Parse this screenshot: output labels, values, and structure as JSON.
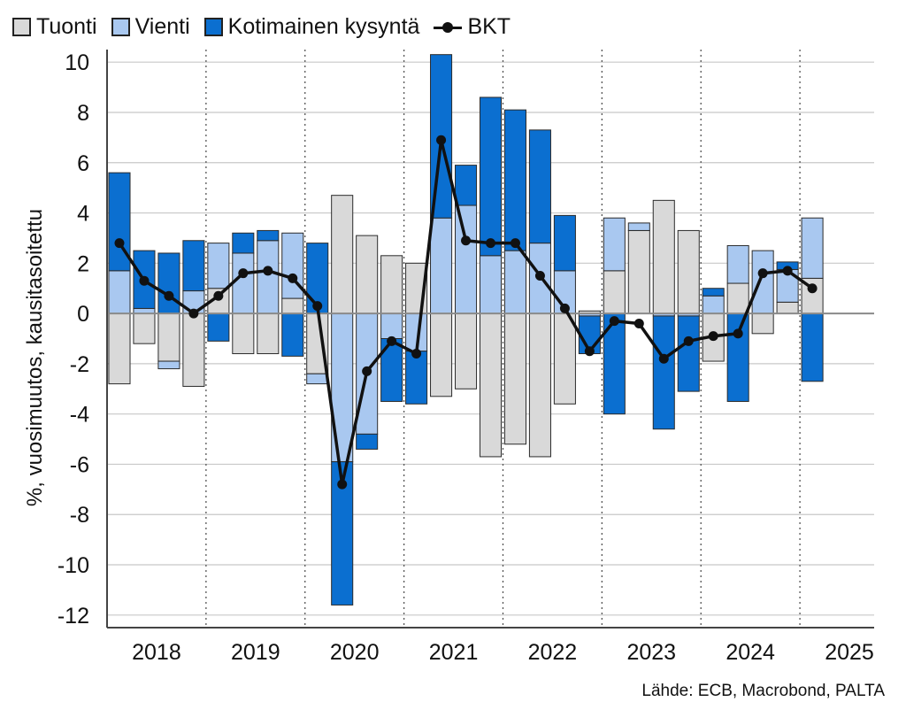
{
  "chart_data": {
    "type": "bar",
    "stacked": true,
    "title": "",
    "xlabel": "",
    "ylabel": "%, vuosimuutos, kausitasoitettu",
    "ylim": [
      -12.5,
      10.5
    ],
    "yticks": [
      10,
      8,
      6,
      4,
      2,
      0,
      -2,
      -4,
      -6,
      -8,
      -10,
      -12
    ],
    "year_labels": [
      "2018",
      "2019",
      "2020",
      "2021",
      "2022",
      "2023",
      "2024",
      "2025"
    ],
    "grid": true,
    "legend_position": "top",
    "categories": [
      "2018Q1",
      "2018Q2",
      "2018Q3",
      "2018Q4",
      "2019Q1",
      "2019Q2",
      "2019Q3",
      "2019Q4",
      "2020Q1",
      "2020Q2",
      "2020Q3",
      "2020Q4",
      "2021Q1",
      "2021Q2",
      "2021Q3",
      "2021Q4",
      "2022Q1",
      "2022Q2",
      "2022Q3",
      "2022Q4",
      "2023Q1",
      "2023Q2",
      "2023Q3",
      "2023Q4",
      "2024Q1",
      "2024Q2",
      "2024Q3",
      "2024Q4",
      "2025Q1",
      "2025Q2",
      "2025Q3"
    ],
    "series": [
      {
        "name": "Tuonti",
        "kind": "bar",
        "color": "#d9d9d9",
        "values": [
          -2.8,
          -1.2,
          -1.9,
          -2.9,
          1.0,
          -1.6,
          -1.6,
          0.6,
          -2.4,
          4.7,
          3.1,
          2.3,
          2.0,
          -3.3,
          -3.0,
          -5.7,
          -5.2,
          -5.7,
          -3.6,
          0.1,
          1.7,
          3.3,
          4.5,
          3.3,
          -1.9,
          1.2,
          -0.8,
          0.45,
          1.4,
          0,
          0
        ]
      },
      {
        "name": "Vienti",
        "kind": "bar",
        "color": "#a9c8f0",
        "values": [
          1.7,
          0.2,
          -0.3,
          0.9,
          1.8,
          2.4,
          2.9,
          2.6,
          -0.4,
          -5.9,
          -4.8,
          -1.0,
          -1.5,
          3.8,
          4.3,
          2.3,
          2.5,
          2.8,
          1.7,
          -0.1,
          2.1,
          0.3,
          -0.1,
          -0.1,
          0.7,
          1.5,
          2.5,
          1.3,
          2.4,
          0,
          0
        ]
      },
      {
        "name": "Kotimainen kysyntä",
        "kind": "bar",
        "color": "#0b6fd0",
        "values": [
          3.9,
          2.3,
          2.4,
          2.0,
          -1.1,
          0.8,
          0.4,
          -1.7,
          2.8,
          -5.7,
          -0.6,
          -2.5,
          -2.1,
          6.5,
          1.6,
          6.3,
          5.6,
          4.5,
          2.2,
          -1.5,
          -4.0,
          0.0,
          -4.5,
          -3.0,
          0.3,
          -3.5,
          0.0,
          0.3,
          -2.7,
          0,
          0
        ]
      },
      {
        "name": "BKT",
        "kind": "line",
        "color": "#111111",
        "values": [
          2.8,
          1.3,
          0.7,
          0.0,
          0.7,
          1.6,
          1.7,
          1.4,
          0.3,
          -6.8,
          -2.3,
          -1.1,
          -1.6,
          6.9,
          2.9,
          2.8,
          2.8,
          1.5,
          0.2,
          -1.5,
          -0.3,
          -0.4,
          -1.8,
          -1.1,
          -0.9,
          -0.8,
          1.6,
          1.7,
          1.0,
          null,
          null
        ]
      }
    ]
  },
  "source_text": "Lähde: ECB, Macrobond, PALTA"
}
